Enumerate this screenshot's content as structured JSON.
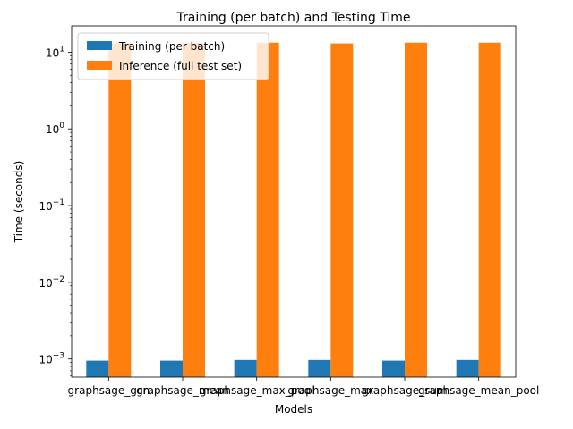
{
  "chart_data": {
    "type": "bar",
    "title": "Training (per batch) and Testing Time",
    "xlabel": "Models",
    "ylabel": "Time (seconds)",
    "yscale": "log",
    "ylim": [
      0.00058,
      22
    ],
    "yticks": [
      {
        "value": 0.001,
        "base": "10",
        "exp": "−3"
      },
      {
        "value": 0.01,
        "base": "10",
        "exp": "−2"
      },
      {
        "value": 0.1,
        "base": "10",
        "exp": "−1"
      },
      {
        "value": 1,
        "base": "10",
        "exp": "0"
      },
      {
        "value": 10,
        "base": "10",
        "exp": "1"
      }
    ],
    "categories": [
      "graphsage_gcn",
      "graphsage_mean",
      "graphsage_max_pool",
      "graphsage_max",
      "graphsage_sum",
      "graphsage_mean_pool"
    ],
    "series": [
      {
        "name": "Training (per batch)",
        "color": "#1f77b4",
        "values": [
          0.00095,
          0.00095,
          0.00097,
          0.00097,
          0.00095,
          0.00097
        ]
      },
      {
        "name": "Inference (full test set)",
        "color": "#ff7f0e",
        "values": [
          13.0,
          13.2,
          13.3,
          13.0,
          13.3,
          13.3
        ]
      }
    ],
    "legend": "top-left",
    "grid": false
  }
}
